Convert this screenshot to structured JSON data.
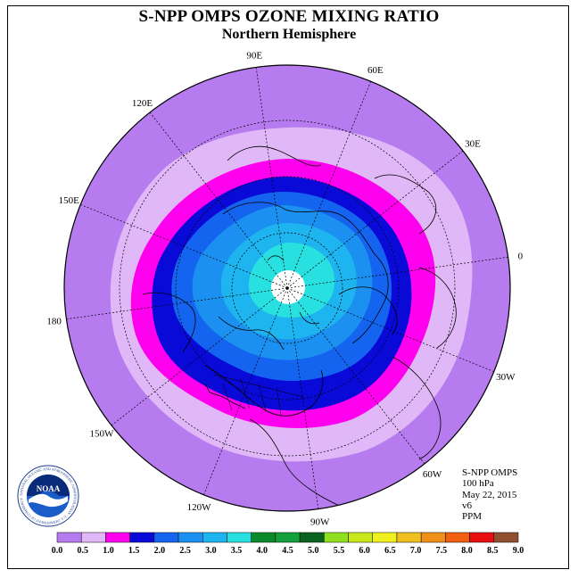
{
  "title": "S-NPP OMPS OZONE MIXING RATIO",
  "subtitle": "Northern Hemisphere",
  "longitude_labels": [
    "90E",
    "60E",
    "30E",
    "0",
    "30W",
    "60W",
    "90W",
    "120W",
    "150W",
    "180",
    "150E",
    "120E"
  ],
  "info": {
    "instrument": "S-NPP OMPS",
    "level": "100 hPa",
    "date": "May 22, 2015",
    "version": "v6",
    "units": "PPM"
  },
  "logo": {
    "name": "noaa-logo",
    "text": "NOAA",
    "ring_text": "NATIONAL OCEANIC AND ATMOSPHERIC ADMINISTRATION · U.S. DEPARTMENT OF COMMERCE"
  },
  "colorbar": {
    "labels": [
      "0.0",
      "0.5",
      "1.0",
      "1.5",
      "2.0",
      "2.5",
      "3.0",
      "3.5",
      "4.0",
      "4.5",
      "5.0",
      "5.5",
      "6.0",
      "6.5",
      "7.0",
      "7.5",
      "8.0",
      "8.5",
      "9.0"
    ],
    "colors": [
      "#b57bef",
      "#e0b8f8",
      "#ff00ee",
      "#0a0ad8",
      "#1464f0",
      "#1c90f0",
      "#1eb4f0",
      "#28e0e0",
      "#0a8a2a",
      "#14a03c",
      "#0a6420",
      "#90e020",
      "#c8e81c",
      "#f0f020",
      "#f0c020",
      "#f09018",
      "#f06010",
      "#e81010",
      "#905030"
    ]
  },
  "map": {
    "band_colors": {
      "background_disk": "#b57bef",
      "band_0_5": "#e0b8f8",
      "band_1_0": "#ff00ee",
      "band_1_5": "#0a0ad8",
      "band_2_0": "#1464f0",
      "band_2_5": "#1c90f0",
      "band_3_0": "#1eb4f0",
      "band_3_5": "#28e0e0",
      "pole": "#ffffff"
    }
  }
}
